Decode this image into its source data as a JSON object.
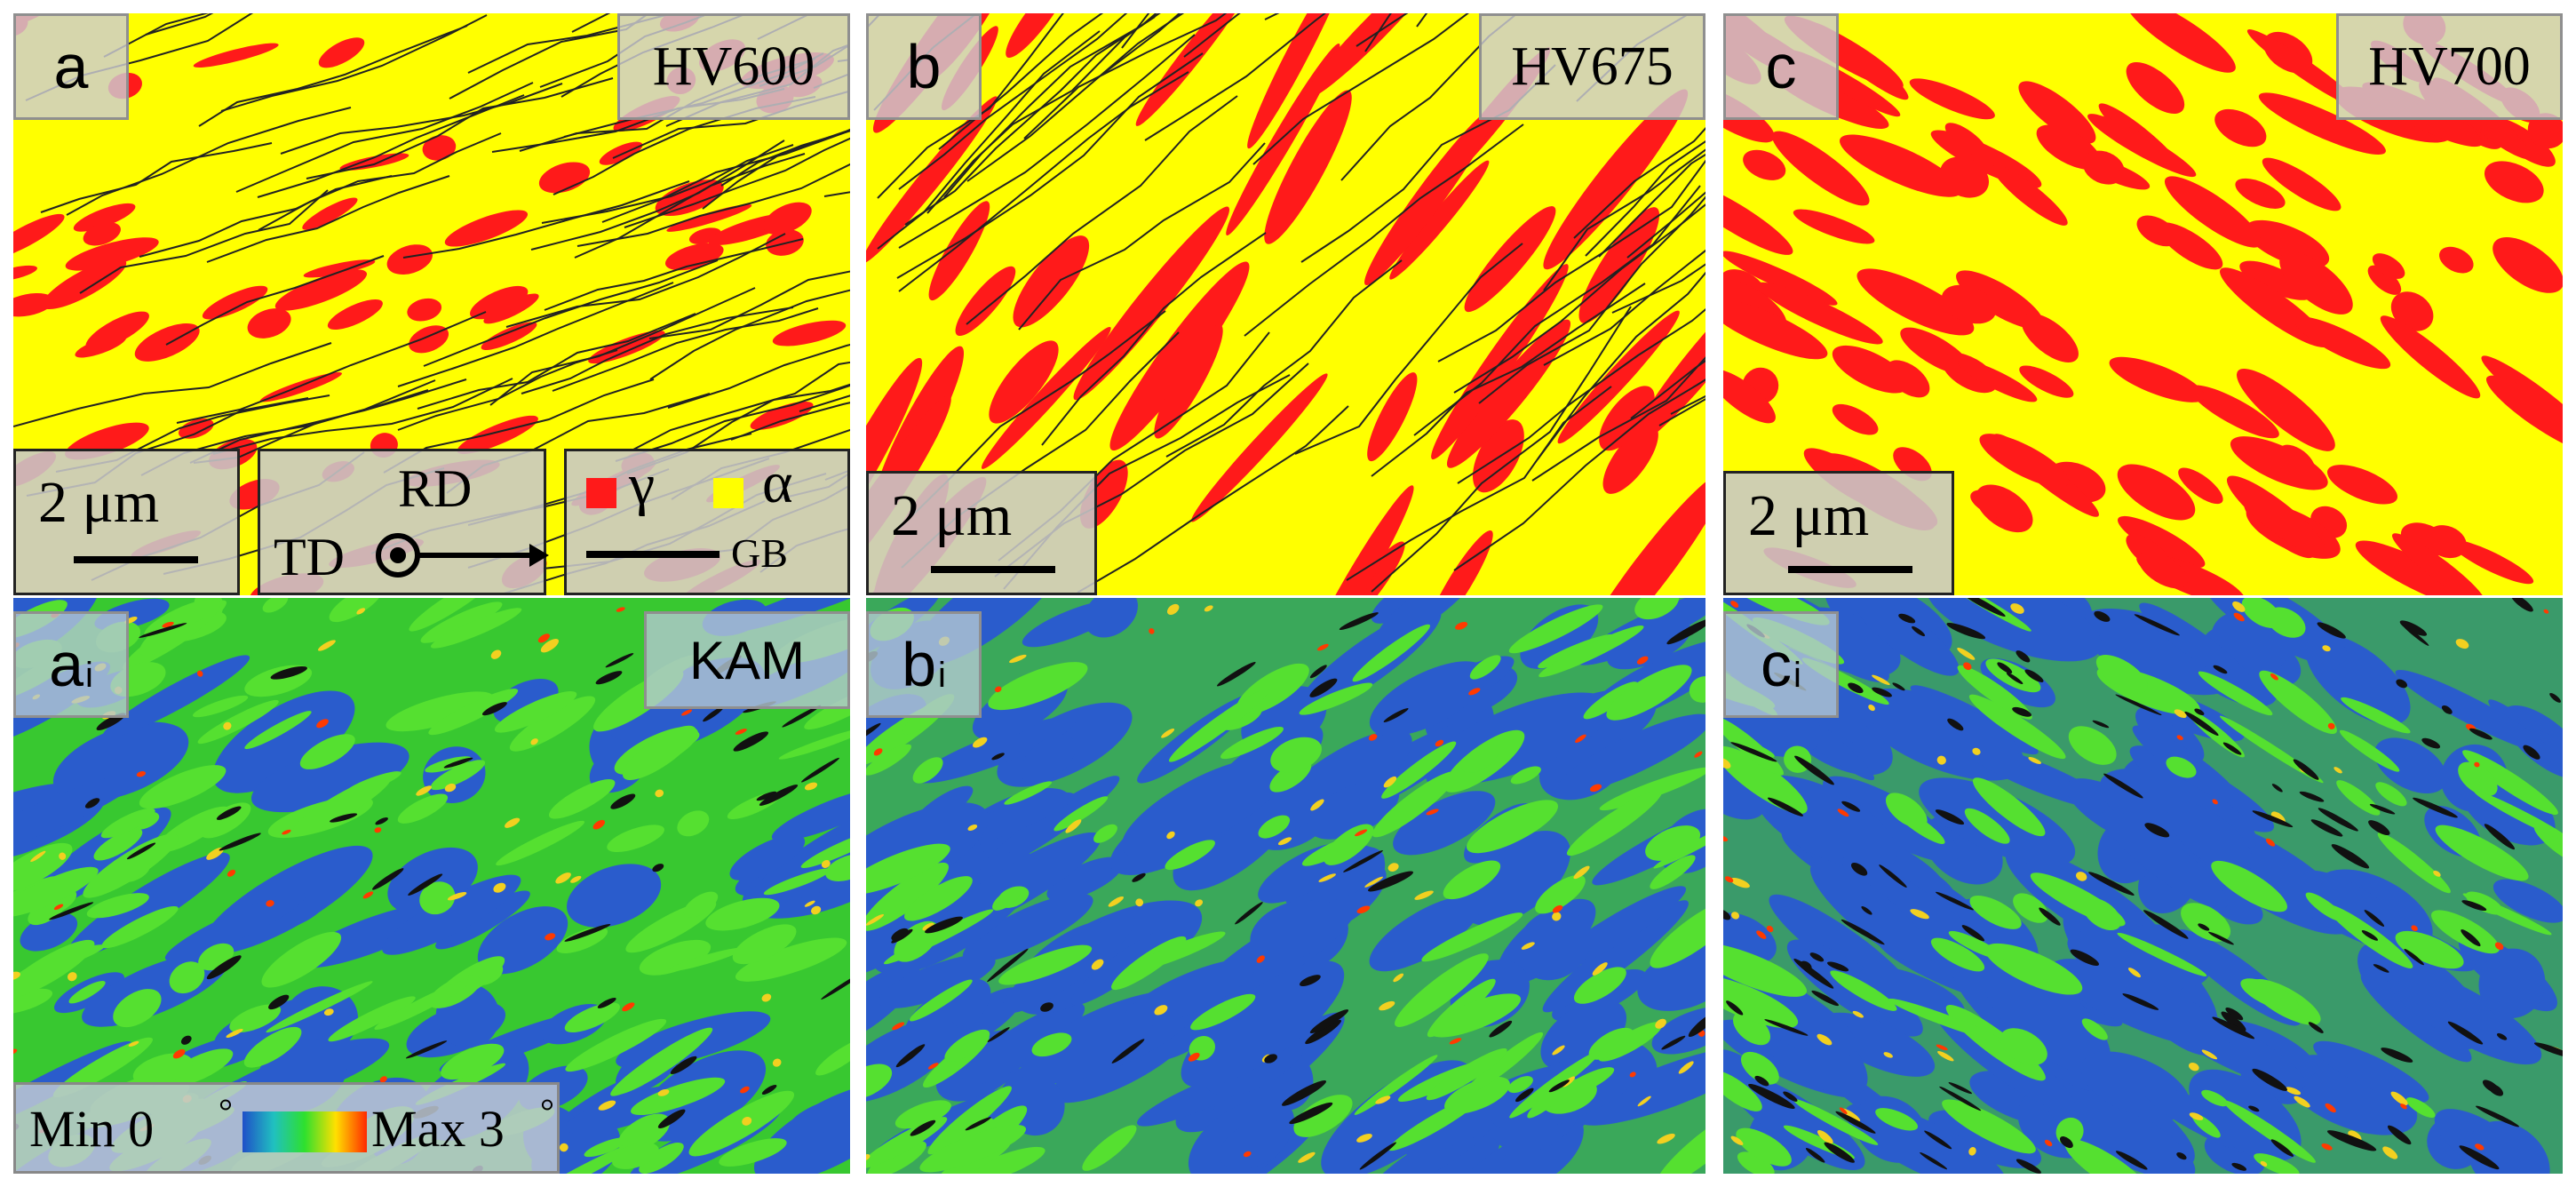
{
  "figure": {
    "top_row": [
      {
        "panel": "a",
        "hardness": "HV600",
        "scale": "2 μm"
      },
      {
        "panel": "b",
        "hardness": "HV675",
        "scale": "2 μm"
      },
      {
        "panel": "c",
        "hardness": "HV700",
        "scale": "2 μm"
      }
    ],
    "bottom_row": [
      {
        "panel": "a",
        "sub": "i",
        "map_label": "KAM"
      },
      {
        "panel": "b",
        "sub": "i"
      },
      {
        "panel": "c",
        "sub": "i"
      }
    ],
    "orientation_legend": {
      "rd": "RD",
      "td": "TD"
    },
    "phase_legend": {
      "gamma": "γ",
      "alpha": "α",
      "gb": "GB"
    },
    "kam_scale": {
      "min": "Min 0",
      "max": "Max 3",
      "degree": "°"
    },
    "colors": {
      "ferrite_alpha": "#ffff00",
      "austenite_gamma": "#ff1a1a",
      "grain_boundary": "#111111",
      "kam_low": "#1f4fc8",
      "kam_mid": "#2ee02e",
      "kam_high": "#ff2a00"
    }
  }
}
